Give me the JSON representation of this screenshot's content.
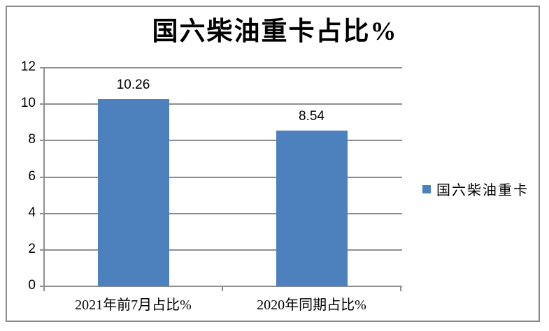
{
  "title": "国六柴油重卡占比%",
  "chart_data": {
    "type": "bar",
    "title": "国六柴油重卡占比%",
    "categories": [
      "2021年前7月占比%",
      "2020年同期占比%"
    ],
    "series": [
      {
        "name": "国六柴油重卡",
        "values": [
          10.26,
          8.54
        ]
      }
    ],
    "value_labels": [
      "10.26",
      "8.54"
    ],
    "y_ticks": [
      0,
      2,
      4,
      6,
      8,
      10,
      12
    ],
    "y_tick_labels": [
      "0",
      "2",
      "4",
      "6",
      "8",
      "10",
      "12"
    ],
    "ylim": [
      0,
      12
    ],
    "xlabel": "",
    "ylabel": "",
    "grid": "horizontal",
    "legend_position": "right"
  },
  "legend": {
    "label": "国六柴油重卡",
    "marker_color": "#4d81bd"
  },
  "colors": {
    "bar": "#4d81bd",
    "gridline": "#8e8e8e",
    "axis": "#8e8e8e",
    "outer_border": "#8a8a8a",
    "background": "#ffffff",
    "text": "#000000"
  }
}
